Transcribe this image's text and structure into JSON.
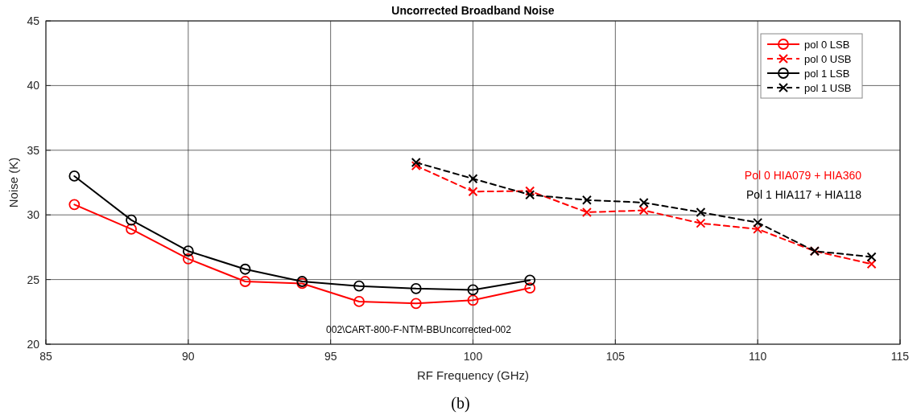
{
  "chart_data": {
    "type": "line",
    "title": "Uncorrected Broadband Noise",
    "xlabel": "RF Frequency (GHz)",
    "ylabel": "Noise (K)",
    "xlim": [
      85,
      115
    ],
    "xticks": [
      85,
      90,
      95,
      100,
      105,
      110,
      115
    ],
    "ylim": [
      20,
      45
    ],
    "yticks": [
      20,
      25,
      30,
      35,
      40,
      45
    ],
    "grid": true,
    "legend": "top right",
    "series": [
      {
        "name": "pol 0 LSB",
        "color": "#ff0000",
        "marker": "circle",
        "line_style": "solid",
        "x": [
          86,
          88,
          90,
          92,
          94,
          96,
          98,
          100,
          102
        ],
        "values": [
          30.8,
          28.9,
          26.6,
          24.85,
          24.7,
          23.3,
          23.15,
          23.4,
          24.35
        ]
      },
      {
        "name": "pol 0 USB",
        "color": "#ff0000",
        "marker": "cross",
        "line_style": "dashed",
        "x": [
          98,
          100,
          102,
          104,
          106,
          108,
          110,
          112,
          114
        ],
        "values": [
          33.8,
          31.8,
          31.85,
          30.2,
          30.35,
          29.35,
          28.9,
          27.2,
          26.2
        ]
      },
      {
        "name": "pol 1 LSB",
        "color": "#000000",
        "marker": "circle",
        "line_style": "solid",
        "x": [
          86,
          88,
          90,
          92,
          94,
          96,
          98,
          100,
          102
        ],
        "values": [
          33.0,
          29.6,
          27.2,
          25.8,
          24.85,
          24.5,
          24.3,
          24.2,
          24.95
        ]
      },
      {
        "name": "pol 1 USB",
        "color": "#000000",
        "marker": "cross",
        "line_style": "dashed",
        "x": [
          98,
          100,
          102,
          104,
          106,
          108,
          110,
          112,
          114
        ],
        "values": [
          34.05,
          32.8,
          31.55,
          31.15,
          30.95,
          30.2,
          29.4,
          27.2,
          26.75
        ]
      }
    ],
    "annotations": [
      "Pol 0 HIA079 + HIA360",
      "Pol 1 HIA117 + HIA118",
      "002\\CART-800-F-NTM-BBUncorrected-002",
      "(b)"
    ]
  }
}
